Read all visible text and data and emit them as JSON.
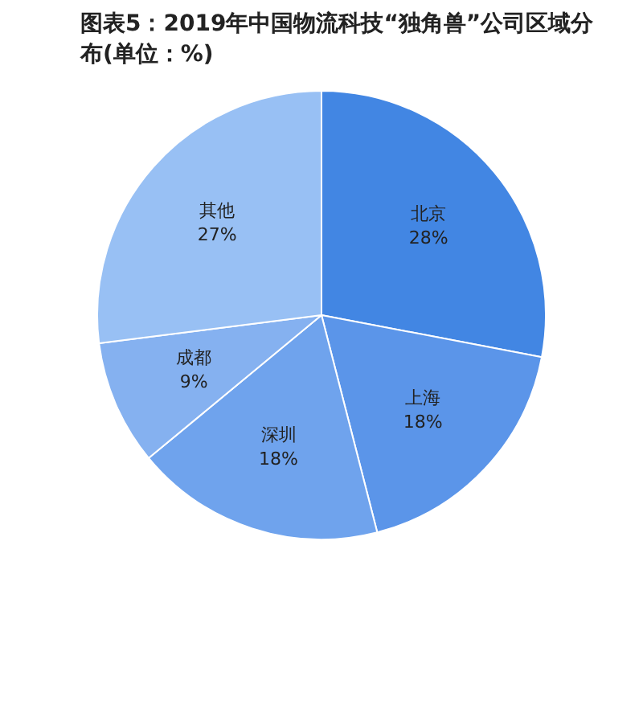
{
  "chart_data": {
    "type": "pie",
    "title": "图表5：2019年中国物流科技“独角兽”公司区域分布(单位：%)",
    "categories": [
      "北京",
      "上海",
      "深圳",
      "成都",
      "其他"
    ],
    "values": [
      28,
      18,
      18,
      9,
      27
    ],
    "value_labels": [
      "28%",
      "18%",
      "18%",
      "9%",
      "27%"
    ],
    "colors": [
      "#4286e3",
      "#5b95e9",
      "#6fa3ed",
      "#85b1f0",
      "#98c0f4"
    ],
    "legend": false
  }
}
